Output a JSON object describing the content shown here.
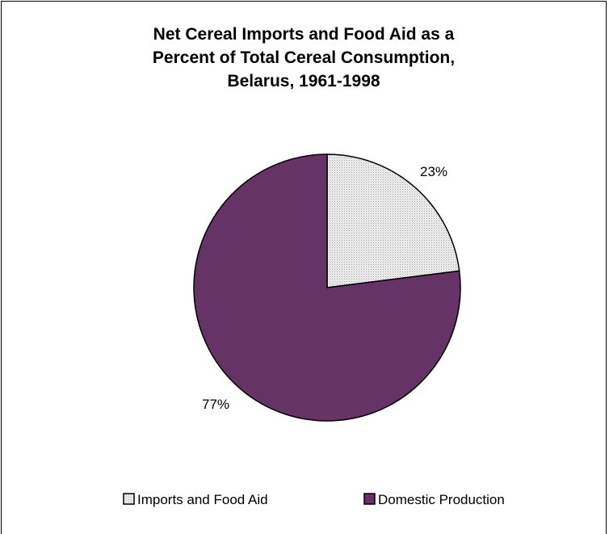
{
  "chart_data": {
    "type": "pie",
    "title_lines": [
      "Net Cereal Imports and Food Aid as a",
      "Percent of Total Cereal Consumption,",
      "Belarus, 1961-1998"
    ],
    "slices": [
      {
        "label": "Imports and Food Aid",
        "value": 23,
        "display": "23%",
        "color": "#e4e4e4",
        "pattern": "dotted-gray"
      },
      {
        "label": "Domestic Production",
        "value": 77,
        "display": "77%",
        "color": "#663366"
      }
    ],
    "legend_position": "bottom"
  }
}
